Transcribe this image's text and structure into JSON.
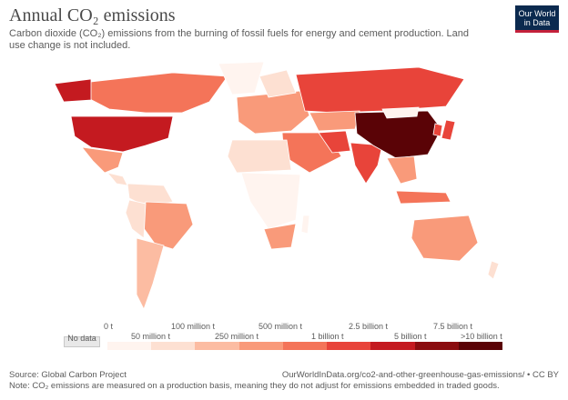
{
  "header": {
    "title": "Annual CO₂ emissions",
    "subtitle": "Carbon dioxide (CO₂) emissions from the burning of fossil fuels for energy and cement production. Land use change is not included."
  },
  "logo": {
    "line1": "Our World",
    "line2": "in Data"
  },
  "legend": {
    "no_data": "No data",
    "top_labels": [
      "0 t",
      "100 million t",
      "500 million t",
      "2.5 billion t",
      "7.5 billion t"
    ],
    "bottom_labels": [
      "50 million t",
      "250 million t",
      "1 billion t",
      "5 billion t",
      ">10 billion t"
    ],
    "colors": [
      "#fff4ef",
      "#fde0d2",
      "#fcbca2",
      "#f99a7a",
      "#f47459",
      "#e8443a",
      "#c41a20",
      "#8a0c0f",
      "#5a0306"
    ]
  },
  "footer": {
    "source": "Source: Global Carbon Project",
    "url": "OurWorldInData.org/co2-and-other-greenhouse-gas-emissions/ • CC BY",
    "note": "Note: CO₂ emissions are measured on a production basis, meaning they do not adjust for emissions embedded in traded goods."
  },
  "map_colors": {
    "china": "#5a0306",
    "usa": "#c41a20",
    "russia": "#e8443a",
    "india": "#e8443a",
    "canada": "#f47459",
    "brazil": "#f99a7a",
    "australia": "#f99a7a",
    "south_africa": "#f99a7a",
    "europe": "#f99a7a",
    "mideast": "#f47459",
    "japan": "#e8443a",
    "indonesia": "#f47459",
    "argentina": "#fcbca2",
    "mexico": "#f99a7a",
    "africa_light": "#fde0d2",
    "africa_pale": "#fff4ef",
    "nodata": "#e8e8e8"
  }
}
